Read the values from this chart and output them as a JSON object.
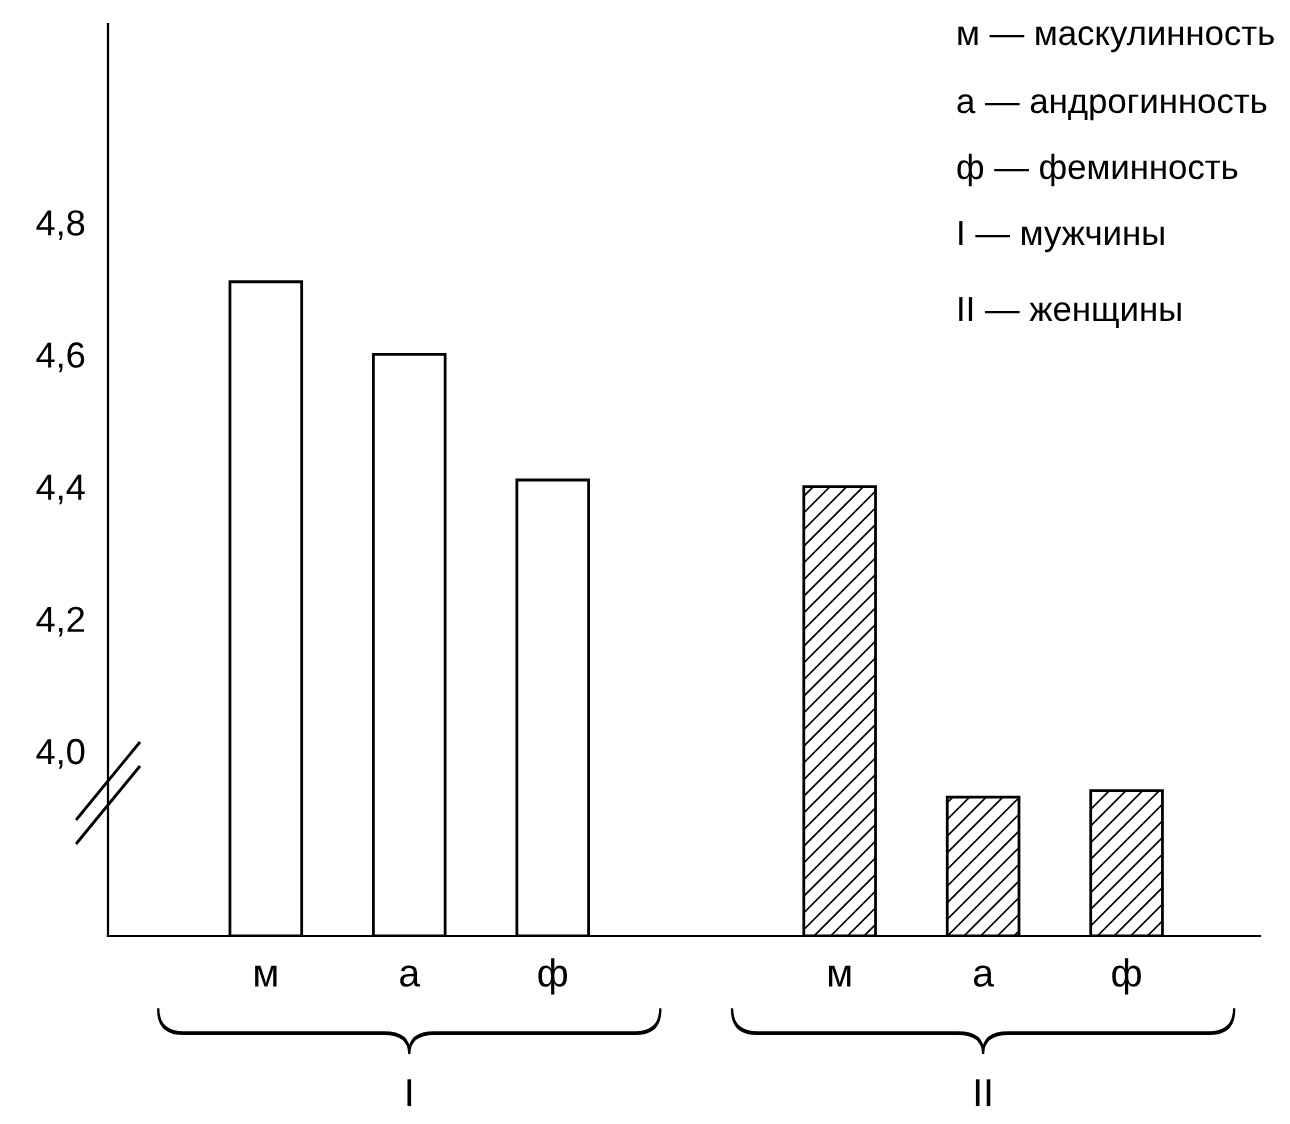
{
  "chart_data": {
    "type": "bar",
    "categories": [
      "м",
      "а",
      "ф",
      null,
      "м",
      "а",
      "ф"
    ],
    "series": [
      {
        "color": "#ffffff",
        "values": [
          4.71,
          4.6,
          4.41,
          null,
          null,
          null,
          null
        ]
      },
      {
        "color": "#000000",
        "values": [
          null,
          null,
          null,
          null,
          4.4,
          3.93,
          3.94
        ]
      }
    ],
    "ylim": [
      3.72,
      5.1
    ],
    "yticks": [
      {
        "value": 4.0,
        "label": "4,0"
      },
      {
        "value": 4.2,
        "label": "4,2"
      },
      {
        "value": 4.4,
        "label": "4,4"
      },
      {
        "value": 4.6,
        "label": "4,6"
      },
      {
        "value": 4.8,
        "label": "4,8"
      }
    ],
    "annotations": [
      "м — маскулинность",
      "а — андрогинность",
      "ф — феминность",
      "I — мужчины",
      "II — женщины",
      "I",
      "II"
    ],
    "grid": false,
    "legend": false
  }
}
